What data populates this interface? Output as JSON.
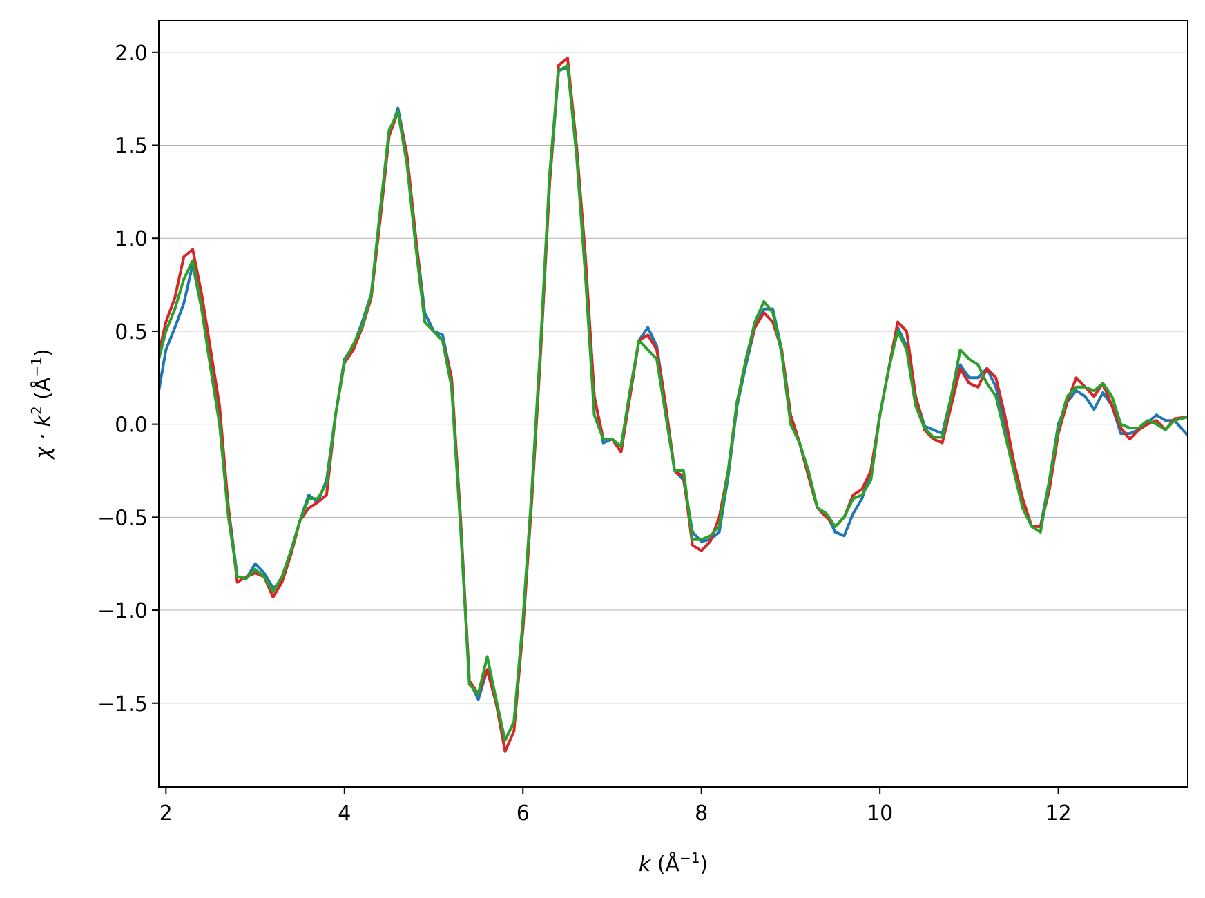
{
  "chart_data": {
    "type": "line",
    "title": "",
    "xlabel": {
      "var": "k",
      "unit": "(Å",
      "sup": "−1",
      "close": ")"
    },
    "ylabel": {
      "pre": "χ · ",
      "var": "k",
      "sup1": "2",
      "unit": " (Å",
      "sup2": "−1",
      "close": ")"
    },
    "xlim": [
      1.92,
      13.45
    ],
    "ylim": [
      -1.95,
      2.17
    ],
    "x_ticks": [
      2,
      4,
      6,
      8,
      10,
      12
    ],
    "x_tick_labels": [
      "2",
      "4",
      "6",
      "8",
      "10",
      "12"
    ],
    "y_ticks": [
      -1.5,
      -1.0,
      -0.5,
      0.0,
      0.5,
      1.0,
      1.5,
      2.0
    ],
    "y_tick_labels": [
      "−1.5",
      "−1.0",
      "−0.5",
      "0.0",
      "0.5",
      "1.0",
      "1.5",
      "2.0"
    ],
    "grid": "horizontal",
    "legend": "none",
    "colors": {
      "blue": "#1f77b4",
      "red": "#d62728",
      "green": "#2ca02c",
      "grid": "#b0b0b0"
    },
    "series": [
      {
        "color": "#1f77b4",
        "x": [
          1.92,
          2.0,
          2.1,
          2.2,
          2.3,
          2.4,
          2.5,
          2.6,
          2.7,
          2.8,
          2.9,
          3.0,
          3.1,
          3.2,
          3.3,
          3.4,
          3.5,
          3.6,
          3.7,
          3.8,
          3.9,
          4.0,
          4.1,
          4.2,
          4.3,
          4.4,
          4.5,
          4.6,
          4.7,
          4.8,
          4.9,
          5.0,
          5.1,
          5.2,
          5.3,
          5.4,
          5.5,
          5.6,
          5.7,
          5.8,
          5.9,
          6.0,
          6.1,
          6.2,
          6.3,
          6.4,
          6.5,
          6.6,
          6.7,
          6.8,
          6.9,
          7.0,
          7.1,
          7.2,
          7.3,
          7.4,
          7.5,
          7.6,
          7.7,
          7.8,
          7.9,
          8.0,
          8.1,
          8.2,
          8.3,
          8.4,
          8.5,
          8.6,
          8.7,
          8.8,
          8.9,
          9.0,
          9.1,
          9.2,
          9.3,
          9.4,
          9.5,
          9.6,
          9.7,
          9.8,
          9.9,
          10.0,
          10.1,
          10.2,
          10.3,
          10.4,
          10.5,
          10.6,
          10.7,
          10.8,
          10.9,
          11.0,
          11.1,
          11.2,
          11.3,
          11.4,
          11.5,
          11.6,
          11.7,
          11.8,
          11.9,
          12.0,
          12.1,
          12.2,
          12.3,
          12.4,
          12.5,
          12.6,
          12.7,
          12.8,
          12.9,
          13.0,
          13.1,
          13.2,
          13.3,
          13.45
        ],
        "y": [
          0.18,
          0.4,
          0.52,
          0.65,
          0.86,
          0.62,
          0.35,
          0.05,
          -0.45,
          -0.82,
          -0.83,
          -0.75,
          -0.8,
          -0.88,
          -0.85,
          -0.7,
          -0.52,
          -0.38,
          -0.42,
          -0.3,
          0.05,
          0.35,
          0.42,
          0.55,
          0.7,
          1.1,
          1.55,
          1.7,
          1.45,
          1.0,
          0.6,
          0.5,
          0.48,
          0.25,
          -0.5,
          -1.38,
          -1.48,
          -1.32,
          -1.5,
          -1.7,
          -1.6,
          -1.1,
          -0.4,
          0.4,
          1.3,
          1.9,
          1.92,
          1.5,
          0.9,
          0.15,
          -0.1,
          -0.08,
          -0.12,
          0.15,
          0.45,
          0.52,
          0.42,
          0.1,
          -0.25,
          -0.3,
          -0.58,
          -0.63,
          -0.62,
          -0.58,
          -0.28,
          0.1,
          0.32,
          0.52,
          0.62,
          0.62,
          0.4,
          0.05,
          -0.1,
          -0.28,
          -0.45,
          -0.48,
          -0.58,
          -0.6,
          -0.48,
          -0.4,
          -0.25,
          0.05,
          0.3,
          0.52,
          0.42,
          0.15,
          -0.01,
          -0.03,
          -0.05,
          0.15,
          0.32,
          0.25,
          0.25,
          0.3,
          0.2,
          0.0,
          -0.2,
          -0.4,
          -0.55,
          -0.55,
          -0.3,
          0.0,
          0.12,
          0.18,
          0.15,
          0.08,
          0.17,
          0.1,
          -0.05,
          -0.05,
          -0.03,
          0.01,
          0.05,
          0.02,
          0.02,
          -0.06
        ]
      },
      {
        "color": "#d62728",
        "x": [
          1.92,
          2.0,
          2.1,
          2.2,
          2.3,
          2.4,
          2.5,
          2.6,
          2.7,
          2.8,
          2.9,
          3.0,
          3.1,
          3.2,
          3.3,
          3.4,
          3.5,
          3.6,
          3.7,
          3.8,
          3.9,
          4.0,
          4.1,
          4.2,
          4.3,
          4.4,
          4.5,
          4.6,
          4.7,
          4.8,
          4.9,
          5.0,
          5.1,
          5.2,
          5.3,
          5.4,
          5.5,
          5.6,
          5.7,
          5.8,
          5.9,
          6.0,
          6.1,
          6.2,
          6.3,
          6.4,
          6.5,
          6.6,
          6.7,
          6.8,
          6.9,
          7.0,
          7.1,
          7.2,
          7.3,
          7.4,
          7.5,
          7.6,
          7.7,
          7.8,
          7.9,
          8.0,
          8.1,
          8.2,
          8.3,
          8.4,
          8.5,
          8.6,
          8.7,
          8.8,
          8.9,
          9.0,
          9.1,
          9.2,
          9.3,
          9.4,
          9.5,
          9.6,
          9.7,
          9.8,
          9.9,
          10.0,
          10.1,
          10.2,
          10.3,
          10.4,
          10.5,
          10.6,
          10.7,
          10.8,
          10.9,
          11.0,
          11.1,
          11.2,
          11.3,
          11.4,
          11.5,
          11.6,
          11.7,
          11.8,
          11.9,
          12.0,
          12.1,
          12.2,
          12.3,
          12.4,
          12.5,
          12.6,
          12.7,
          12.8,
          12.9,
          13.0,
          13.1,
          13.2,
          13.3,
          13.45
        ],
        "y": [
          0.38,
          0.55,
          0.68,
          0.9,
          0.94,
          0.7,
          0.4,
          0.1,
          -0.45,
          -0.85,
          -0.82,
          -0.8,
          -0.82,
          -0.93,
          -0.85,
          -0.7,
          -0.52,
          -0.45,
          -0.42,
          -0.38,
          0.05,
          0.33,
          0.4,
          0.52,
          0.68,
          1.1,
          1.55,
          1.68,
          1.45,
          1.0,
          0.55,
          0.5,
          0.45,
          0.25,
          -0.5,
          -1.38,
          -1.45,
          -1.32,
          -1.5,
          -1.76,
          -1.65,
          -1.1,
          -0.4,
          0.4,
          1.3,
          1.93,
          1.97,
          1.5,
          0.9,
          0.15,
          -0.08,
          -0.08,
          -0.15,
          0.15,
          0.45,
          0.48,
          0.4,
          0.1,
          -0.25,
          -0.28,
          -0.65,
          -0.68,
          -0.63,
          -0.5,
          -0.25,
          0.12,
          0.35,
          0.52,
          0.6,
          0.55,
          0.4,
          0.05,
          -0.1,
          -0.28,
          -0.45,
          -0.5,
          -0.55,
          -0.5,
          -0.38,
          -0.35,
          -0.25,
          0.05,
          0.3,
          0.55,
          0.5,
          0.15,
          -0.03,
          -0.08,
          -0.1,
          0.1,
          0.3,
          0.22,
          0.2,
          0.3,
          0.25,
          0.05,
          -0.2,
          -0.4,
          -0.55,
          -0.55,
          -0.35,
          -0.05,
          0.12,
          0.25,
          0.2,
          0.15,
          0.22,
          0.1,
          -0.02,
          -0.08,
          -0.03,
          0.0,
          0.02,
          -0.03,
          0.03,
          0.04
        ]
      },
      {
        "color": "#2ca02c",
        "x": [
          1.92,
          2.0,
          2.1,
          2.2,
          2.3,
          2.4,
          2.5,
          2.6,
          2.7,
          2.8,
          2.9,
          3.0,
          3.1,
          3.2,
          3.3,
          3.4,
          3.5,
          3.6,
          3.7,
          3.8,
          3.9,
          4.0,
          4.1,
          4.2,
          4.3,
          4.4,
          4.5,
          4.6,
          4.7,
          4.8,
          4.9,
          5.0,
          5.1,
          5.2,
          5.3,
          5.4,
          5.5,
          5.6,
          5.7,
          5.8,
          5.9,
          6.0,
          6.1,
          6.2,
          6.3,
          6.4,
          6.5,
          6.6,
          6.7,
          6.8,
          6.9,
          7.0,
          7.1,
          7.2,
          7.3,
          7.4,
          7.5,
          7.6,
          7.7,
          7.8,
          7.9,
          8.0,
          8.1,
          8.2,
          8.3,
          8.4,
          8.5,
          8.6,
          8.7,
          8.8,
          8.9,
          9.0,
          9.1,
          9.2,
          9.3,
          9.4,
          9.5,
          9.6,
          9.7,
          9.8,
          9.9,
          10.0,
          10.1,
          10.2,
          10.3,
          10.4,
          10.5,
          10.6,
          10.7,
          10.8,
          10.9,
          11.0,
          11.1,
          11.2,
          11.3,
          11.4,
          11.5,
          11.6,
          11.7,
          11.8,
          11.9,
          12.0,
          12.1,
          12.2,
          12.3,
          12.4,
          12.5,
          12.6,
          12.7,
          12.8,
          12.9,
          13.0,
          13.1,
          13.2,
          13.3,
          13.45
        ],
        "y": [
          0.35,
          0.5,
          0.62,
          0.78,
          0.88,
          0.62,
          0.3,
          0.0,
          -0.5,
          -0.82,
          -0.83,
          -0.78,
          -0.82,
          -0.9,
          -0.82,
          -0.68,
          -0.52,
          -0.4,
          -0.4,
          -0.32,
          0.05,
          0.34,
          0.43,
          0.53,
          0.7,
          1.15,
          1.58,
          1.68,
          1.4,
          0.95,
          0.55,
          0.5,
          0.45,
          0.2,
          -0.55,
          -1.4,
          -1.45,
          -1.25,
          -1.48,
          -1.7,
          -1.6,
          -1.05,
          -0.35,
          0.45,
          1.35,
          1.9,
          1.93,
          1.45,
          0.8,
          0.05,
          -0.08,
          -0.08,
          -0.12,
          0.18,
          0.45,
          0.4,
          0.35,
          0.05,
          -0.25,
          -0.25,
          -0.62,
          -0.62,
          -0.6,
          -0.55,
          -0.25,
          0.12,
          0.35,
          0.55,
          0.66,
          0.6,
          0.38,
          0.0,
          -0.1,
          -0.25,
          -0.45,
          -0.48,
          -0.55,
          -0.5,
          -0.4,
          -0.38,
          -0.3,
          0.05,
          0.3,
          0.5,
          0.4,
          0.1,
          -0.02,
          -0.07,
          -0.07,
          0.15,
          0.4,
          0.35,
          0.32,
          0.22,
          0.15,
          -0.05,
          -0.25,
          -0.45,
          -0.55,
          -0.58,
          -0.3,
          -0.02,
          0.15,
          0.2,
          0.2,
          0.18,
          0.22,
          0.15,
          0.0,
          -0.02,
          -0.02,
          0.02,
          0.0,
          -0.03,
          0.02,
          0.04
        ]
      }
    ]
  }
}
